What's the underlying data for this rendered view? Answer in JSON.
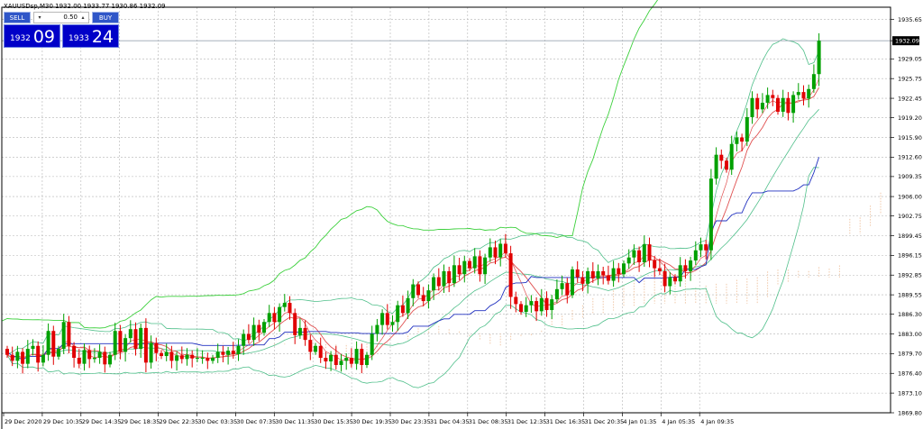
{
  "symbol_info": "XAUUSDsp,M30  1932.00 1933.77 1930.86 1932.09",
  "trade_panel": {
    "sell_label": "SELL",
    "buy_label": "BUY",
    "lot": "0.50",
    "bid_small": "1932",
    "bid_big": "09",
    "ask_small": "1933",
    "ask_big": "24",
    "down_arrow": "▾",
    "up_arrow": "▴"
  },
  "current_price_label": "1932.09",
  "colors": {
    "bull": "#00a000",
    "bear": "#e00000",
    "bb": "#4fbf8a",
    "ma_red": "#e05050",
    "ma_blue": "#2030c0",
    "envelope": "#3cd03c",
    "cloud": "#f0c8a8",
    "grid": "#b4b4b4",
    "price_line": "#9aa6b2"
  },
  "chart_data": {
    "type": "candlestick",
    "symbol": "XAUUSDsp",
    "timeframe": "M30",
    "ylim": [
      1869.8,
      1937.7
    ],
    "y_ticks": [
      "1935.65",
      "1932.09",
      "1929.05",
      "1925.75",
      "1922.45",
      "1919.20",
      "1915.90",
      "1912.60",
      "1909.35",
      "1906.00",
      "1902.75",
      "1899.45",
      "1896.15",
      "1892.85",
      "1889.55",
      "1886.30",
      "1883.00",
      "1879.70",
      "1876.40",
      "1873.10",
      "1869.80"
    ],
    "x_ticks": [
      "29 Dec 2020",
      "29 Dec 10:35",
      "29 Dec 14:35",
      "29 Dec 18:35",
      "29 Dec 22:35",
      "30 Dec 03:35",
      "30 Dec 07:35",
      "30 Dec 11:35",
      "30 Dec 15:35",
      "30 Dec 19:35",
      "30 Dec 23:35",
      "31 Dec 04:35",
      "31 Dec 08:35",
      "31 Dec 12:35",
      "31 Dec 16:35",
      "31 Dec 20:35",
      "4 Jan 01:35",
      "4 Jan 05:35",
      "4 Jan 09:35"
    ],
    "last_price": 1932.09,
    "closes": [
      1879.5,
      1878.5,
      1880.0,
      1878.0,
      1880.5,
      1881.0,
      1878.2,
      1879.5,
      1883.5,
      1879.2,
      1880.5,
      1885.0,
      1881.0,
      1879.0,
      1878.0,
      1880.3,
      1878.8,
      1879.0,
      1880.0,
      1877.9,
      1879.5,
      1883.5,
      1880.0,
      1882.3,
      1883.8,
      1880.5,
      1884.0,
      1878.2,
      1881.5,
      1879.8,
      1879.3,
      1880.0,
      1878.5,
      1879.4,
      1878.8,
      1879.5,
      1878.9,
      1879.0,
      1879.0,
      1878.5,
      1879.0,
      1880.0,
      1879.5,
      1880.2,
      1879.6,
      1881.0,
      1883.0,
      1882.0,
      1884.5,
      1883.2,
      1885.0,
      1886.5,
      1885.0,
      1887.5,
      1888.2,
      1886.5,
      1882.8,
      1884.0,
      1882.0,
      1880.0,
      1881.0,
      1879.0,
      1878.4,
      1879.5,
      1877.8,
      1878.5,
      1879.0,
      1878.0,
      1880.5,
      1877.8,
      1879.5,
      1883.0,
      1884.5,
      1886.5,
      1884.5,
      1885.0,
      1887.8,
      1886.5,
      1889.0,
      1891.3,
      1889.5,
      1888.5,
      1890.3,
      1892.5,
      1891.0,
      1893.5,
      1891.5,
      1894.5,
      1893.0,
      1895.2,
      1894.0,
      1896.0,
      1893.0,
      1895.8,
      1897.5,
      1895.8,
      1898.1,
      1896.5,
      1889.2,
      1888.0,
      1886.7,
      1887.8,
      1888.5,
      1886.8,
      1889.0,
      1887.0,
      1888.8,
      1890.5,
      1891.5,
      1889.5,
      1893.8,
      1892.5,
      1891.4,
      1893.5,
      1892.3,
      1893.5,
      1892.8,
      1891.9,
      1894.0,
      1893.0,
      1894.8,
      1895.8,
      1897.0,
      1895.0,
      1898.0,
      1895.3,
      1894.0,
      1893.5,
      1891.0,
      1892.5,
      1891.8,
      1894.5,
      1893.5,
      1895.3,
      1897.0,
      1898.0,
      1897.0,
      1909.0,
      1913.0,
      1912.0,
      1910.5,
      1914.8,
      1915.9,
      1915.2,
      1919.3,
      1922.5,
      1920.6,
      1921.7,
      1923.0,
      1922.5,
      1920.2,
      1922.5,
      1920.0,
      1923.0,
      1923.5,
      1922.4,
      1924.0,
      1926.5,
      1932.09
    ]
  }
}
